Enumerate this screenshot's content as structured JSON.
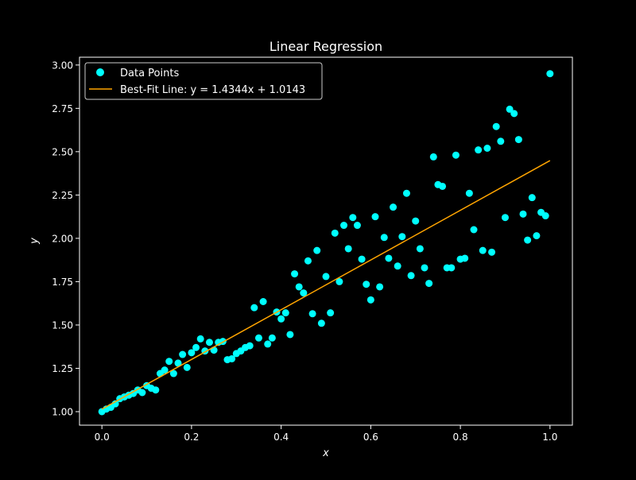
{
  "chart_data": {
    "type": "scatter",
    "title": "Linear Regression",
    "xlabel": "x",
    "ylabel": "y",
    "xlim": [
      -0.05,
      1.05
    ],
    "ylim": [
      0.922,
      3.045
    ],
    "x_ticks": [
      "0.0",
      "0.2",
      "0.4",
      "0.6",
      "0.8",
      "1.0"
    ],
    "y_ticks": [
      "1.00",
      "1.25",
      "1.50",
      "1.75",
      "2.00",
      "2.25",
      "2.50",
      "2.75",
      "3.00"
    ],
    "grid": false,
    "legend_position": "top-left",
    "series": [
      {
        "name": "Data Points",
        "kind": "scatter",
        "color": "#00ffff",
        "points": [
          [
            0.0,
            1.0
          ],
          [
            0.01,
            1.015
          ],
          [
            0.02,
            1.025
          ],
          [
            0.03,
            1.045
          ],
          [
            0.04,
            1.075
          ],
          [
            0.05,
            1.085
          ],
          [
            0.06,
            1.095
          ],
          [
            0.07,
            1.105
          ],
          [
            0.08,
            1.125
          ],
          [
            0.09,
            1.11
          ],
          [
            0.1,
            1.15
          ],
          [
            0.11,
            1.135
          ],
          [
            0.12,
            1.125
          ],
          [
            0.13,
            1.22
          ],
          [
            0.14,
            1.24
          ],
          [
            0.15,
            1.29
          ],
          [
            0.16,
            1.22
          ],
          [
            0.17,
            1.28
          ],
          [
            0.18,
            1.33
          ],
          [
            0.19,
            1.255
          ],
          [
            0.2,
            1.34
          ],
          [
            0.21,
            1.37
          ],
          [
            0.22,
            1.42
          ],
          [
            0.23,
            1.35
          ],
          [
            0.24,
            1.4
          ],
          [
            0.25,
            1.355
          ],
          [
            0.26,
            1.4
          ],
          [
            0.27,
            1.405
          ],
          [
            0.28,
            1.3
          ],
          [
            0.29,
            1.305
          ],
          [
            0.3,
            1.335
          ],
          [
            0.31,
            1.35
          ],
          [
            0.32,
            1.37
          ],
          [
            0.33,
            1.38
          ],
          [
            0.34,
            1.6
          ],
          [
            0.35,
            1.425
          ],
          [
            0.36,
            1.635
          ],
          [
            0.37,
            1.39
          ],
          [
            0.38,
            1.425
          ],
          [
            0.39,
            1.575
          ],
          [
            0.4,
            1.535
          ],
          [
            0.41,
            1.57
          ],
          [
            0.42,
            1.445
          ],
          [
            0.43,
            1.795
          ],
          [
            0.44,
            1.72
          ],
          [
            0.45,
            1.685
          ],
          [
            0.46,
            1.87
          ],
          [
            0.47,
            1.565
          ],
          [
            0.48,
            1.93
          ],
          [
            0.49,
            1.51
          ],
          [
            0.5,
            1.78
          ],
          [
            0.51,
            1.57
          ],
          [
            0.52,
            2.03
          ],
          [
            0.53,
            1.75
          ],
          [
            0.54,
            2.075
          ],
          [
            0.55,
            1.94
          ],
          [
            0.56,
            2.12
          ],
          [
            0.57,
            2.075
          ],
          [
            0.58,
            1.88
          ],
          [
            0.59,
            1.735
          ],
          [
            0.6,
            1.645
          ],
          [
            0.61,
            2.125
          ],
          [
            0.62,
            1.72
          ],
          [
            0.63,
            2.005
          ],
          [
            0.64,
            1.885
          ],
          [
            0.65,
            2.18
          ],
          [
            0.66,
            1.84
          ],
          [
            0.67,
            2.01
          ],
          [
            0.68,
            2.26
          ],
          [
            0.69,
            1.785
          ],
          [
            0.7,
            2.1
          ],
          [
            0.71,
            1.94
          ],
          [
            0.72,
            1.83
          ],
          [
            0.73,
            1.74
          ],
          [
            0.74,
            2.47
          ],
          [
            0.75,
            2.31
          ],
          [
            0.76,
            2.3
          ],
          [
            0.77,
            1.83
          ],
          [
            0.78,
            1.83
          ],
          [
            0.79,
            2.48
          ],
          [
            0.8,
            1.88
          ],
          [
            0.81,
            1.885
          ],
          [
            0.82,
            2.26
          ],
          [
            0.83,
            2.05
          ],
          [
            0.84,
            2.51
          ],
          [
            0.85,
            1.93
          ],
          [
            0.86,
            2.52
          ],
          [
            0.87,
            1.92
          ],
          [
            0.88,
            2.645
          ],
          [
            0.89,
            2.56
          ],
          [
            0.9,
            2.12
          ],
          [
            0.91,
            2.745
          ],
          [
            0.92,
            2.72
          ],
          [
            0.93,
            2.57
          ],
          [
            0.94,
            2.14
          ],
          [
            0.95,
            1.99
          ],
          [
            0.96,
            2.235
          ],
          [
            0.97,
            2.015
          ],
          [
            0.98,
            2.15
          ],
          [
            0.99,
            2.13
          ],
          [
            1.0,
            2.95
          ]
        ]
      },
      {
        "name": "Best-Fit Line: y = 1.4344x + 1.0143",
        "kind": "line",
        "color": "#ffa500",
        "slope": 1.4344,
        "intercept": 1.0143,
        "x_range": [
          0.0,
          1.0
        ]
      }
    ]
  }
}
